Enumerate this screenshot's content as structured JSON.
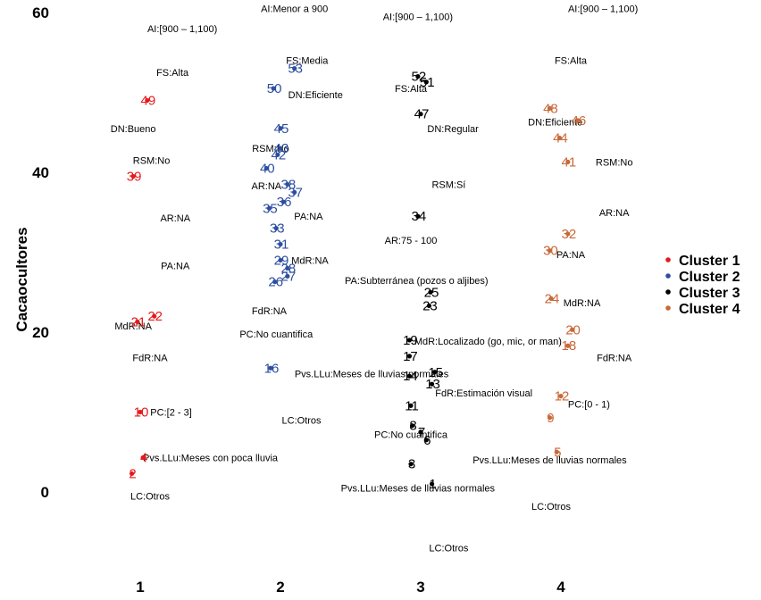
{
  "chart_data": {
    "type": "scatter",
    "title": "",
    "xlabel": "",
    "ylabel": "Cacaocultores",
    "x_ticks": [
      "1",
      "2",
      "3",
      "4"
    ],
    "y_ticks": [
      0,
      20,
      40,
      60
    ],
    "xlim": [
      0.1,
      5.4
    ],
    "ylim": [
      -11,
      61
    ],
    "grid": false,
    "legend": {
      "placement": "right",
      "entries": [
        {
          "name": "Cluster 1",
          "color": "#e41a1c"
        },
        {
          "name": "Cluster 2",
          "color": "#2e4fa0"
        },
        {
          "name": "Cluster 3",
          "color": "#000000"
        },
        {
          "name": "Cluster 4",
          "color": "#c8693a"
        }
      ]
    },
    "series": [
      {
        "name": "Cluster 1",
        "color": "#e41a1c",
        "points": [
          {
            "id": "49",
            "x": 1.05,
            "y": 49.0
          },
          {
            "id": "39",
            "x": 0.95,
            "y": 39.5
          },
          {
            "id": "22",
            "x": 1.1,
            "y": 22.0
          },
          {
            "id": "21",
            "x": 0.98,
            "y": 21.3
          },
          {
            "id": "10",
            "x": 1.0,
            "y": 10.0
          },
          {
            "id": "4",
            "x": 1.02,
            "y": 4.3
          },
          {
            "id": "2",
            "x": 0.94,
            "y": 2.3
          }
        ]
      },
      {
        "name": "Cluster 2",
        "color": "#2e4fa0",
        "points": [
          {
            "id": "53",
            "x": 2.1,
            "y": 53.0
          },
          {
            "id": "50",
            "x": 1.95,
            "y": 50.5
          },
          {
            "id": "45",
            "x": 2.0,
            "y": 45.5
          },
          {
            "id": "43",
            "x": 2.0,
            "y": 43.0
          },
          {
            "id": "42",
            "x": 1.98,
            "y": 42.2
          },
          {
            "id": "40",
            "x": 1.9,
            "y": 40.5
          },
          {
            "id": "38",
            "x": 2.05,
            "y": 38.5
          },
          {
            "id": "37",
            "x": 2.1,
            "y": 37.5
          },
          {
            "id": "36",
            "x": 2.02,
            "y": 36.3
          },
          {
            "id": "35",
            "x": 1.92,
            "y": 35.5
          },
          {
            "id": "33",
            "x": 1.97,
            "y": 33.0
          },
          {
            "id": "31",
            "x": 2.0,
            "y": 31.0
          },
          {
            "id": "29",
            "x": 2.0,
            "y": 29.0
          },
          {
            "id": "28",
            "x": 2.05,
            "y": 28.0
          },
          {
            "id": "27",
            "x": 2.05,
            "y": 27.0
          },
          {
            "id": "26",
            "x": 1.96,
            "y": 26.3
          },
          {
            "id": "16",
            "x": 1.93,
            "y": 15.5
          }
        ]
      },
      {
        "name": "Cluster 3",
        "color": "#000000",
        "points": [
          {
            "id": "52",
            "x": 2.98,
            "y": 52.0
          },
          {
            "id": "51",
            "x": 3.04,
            "y": 51.3
          },
          {
            "id": "47",
            "x": 3.0,
            "y": 47.3
          },
          {
            "id": "34",
            "x": 2.98,
            "y": 34.5
          },
          {
            "id": "25",
            "x": 3.07,
            "y": 25.0
          },
          {
            "id": "23",
            "x": 3.06,
            "y": 23.3
          },
          {
            "id": "19",
            "x": 2.92,
            "y": 19.0
          },
          {
            "id": "17",
            "x": 2.92,
            "y": 17.0
          },
          {
            "id": "15",
            "x": 3.1,
            "y": 15.0
          },
          {
            "id": "14",
            "x": 2.92,
            "y": 14.5
          },
          {
            "id": "13",
            "x": 3.08,
            "y": 13.5
          },
          {
            "id": "11",
            "x": 2.93,
            "y": 10.8
          },
          {
            "id": "8",
            "x": 2.94,
            "y": 8.3
          },
          {
            "id": "7",
            "x": 3.0,
            "y": 7.5
          },
          {
            "id": "6",
            "x": 3.04,
            "y": 6.5
          },
          {
            "id": "3",
            "x": 2.93,
            "y": 3.5
          },
          {
            "id": "1",
            "x": 3.08,
            "y": 1.0
          }
        ]
      },
      {
        "name": "Cluster 4",
        "color": "#c8693a",
        "points": [
          {
            "id": "48",
            "x": 3.92,
            "y": 48.0
          },
          {
            "id": "46",
            "x": 4.12,
            "y": 46.5
          },
          {
            "id": "44",
            "x": 3.99,
            "y": 44.3
          },
          {
            "id": "41",
            "x": 4.05,
            "y": 41.3
          },
          {
            "id": "32",
            "x": 4.05,
            "y": 32.3
          },
          {
            "id": "30",
            "x": 3.92,
            "y": 30.2
          },
          {
            "id": "24",
            "x": 3.93,
            "y": 24.2
          },
          {
            "id": "20",
            "x": 4.08,
            "y": 20.3
          },
          {
            "id": "18",
            "x": 4.05,
            "y": 18.3
          },
          {
            "id": "12",
            "x": 4.0,
            "y": 12.0
          },
          {
            "id": "9",
            "x": 3.92,
            "y": 9.3
          },
          {
            "id": "5",
            "x": 3.97,
            "y": 5.0
          }
        ]
      }
    ],
    "annotations": [
      {
        "text": "AI:[900 – 1,100)",
        "x": 1.3,
        "y": 58.0
      },
      {
        "text": "FS:Alta",
        "x": 1.23,
        "y": 52.5
      },
      {
        "text": "DN:Bueno",
        "x": 0.95,
        "y": 45.5
      },
      {
        "text": "RSM:No",
        "x": 1.08,
        "y": 41.5
      },
      {
        "text": "AR:NA",
        "x": 1.25,
        "y": 34.3
      },
      {
        "text": "PA:NA",
        "x": 1.25,
        "y": 28.3
      },
      {
        "text": "MdR:NA",
        "x": 0.95,
        "y": 20.8
      },
      {
        "text": "FdR:NA",
        "x": 1.07,
        "y": 16.8
      },
      {
        "text": "PC:[2 - 3]",
        "x": 1.22,
        "y": 10.0
      },
      {
        "text": "Pvs.LLu:Meses con poca lluvia",
        "x": 1.5,
        "y": 4.3
      },
      {
        "text": "LC:Otros",
        "x": 1.07,
        "y": -0.5
      },
      {
        "text": "AI:Menor a 900",
        "x": 2.1,
        "y": 60.5
      },
      {
        "text": "FS:Media",
        "x": 2.19,
        "y": 54.0
      },
      {
        "text": "DN:Eficiente",
        "x": 2.25,
        "y": 49.7
      },
      {
        "text": "RSM:No",
        "x": 1.93,
        "y": 43.0
      },
      {
        "text": "AR:NA",
        "x": 1.9,
        "y": 38.3
      },
      {
        "text": "PA:NA",
        "x": 2.2,
        "y": 34.5
      },
      {
        "text": "MdR:NA",
        "x": 2.21,
        "y": 29.0
      },
      {
        "text": "FdR:NA",
        "x": 1.92,
        "y": 22.7
      },
      {
        "text": "PC:No cuantifica",
        "x": 1.97,
        "y": 19.8
      },
      {
        "text": "Pvs.LLu:Meses de lluvias normales",
        "x": 2.65,
        "y": 14.8
      },
      {
        "text": "LC:Otros",
        "x": 2.15,
        "y": 9.0
      },
      {
        "text": "AI:[900 – 1,100)",
        "x": 2.98,
        "y": 59.5
      },
      {
        "text": "FS:Alta",
        "x": 2.93,
        "y": 50.5
      },
      {
        "text": "DN:Regular",
        "x": 3.23,
        "y": 45.5
      },
      {
        "text": "RSM:Sí",
        "x": 3.2,
        "y": 38.5
      },
      {
        "text": "AR:75 - 100",
        "x": 2.93,
        "y": 31.5
      },
      {
        "text": "PA:Subterránea (pozos o aljibes)",
        "x": 2.97,
        "y": 26.5
      },
      {
        "text": "MdR:Localizado (go, mic, or man)",
        "x": 3.48,
        "y": 18.9
      },
      {
        "text": "FdR:Estimación visual",
        "x": 3.45,
        "y": 12.4
      },
      {
        "text": "PC:No cuantifica",
        "x": 2.93,
        "y": 7.2
      },
      {
        "text": "Pvs.LLu:Meses de lluvias normales",
        "x": 2.98,
        "y": 0.5
      },
      {
        "text": "LC:Otros",
        "x": 3.2,
        "y": -7.0
      },
      {
        "text": "AI:[900 – 1,100)",
        "x": 4.3,
        "y": 60.5
      },
      {
        "text": "FS:Alta",
        "x": 4.07,
        "y": 54.0
      },
      {
        "text": "DN:Eficiente",
        "x": 3.96,
        "y": 46.3
      },
      {
        "text": "RSM:No",
        "x": 4.38,
        "y": 41.3
      },
      {
        "text": "AR:NA",
        "x": 4.38,
        "y": 35.0
      },
      {
        "text": "PA:NA",
        "x": 4.07,
        "y": 29.7
      },
      {
        "text": "MdR:NA",
        "x": 4.15,
        "y": 23.7
      },
      {
        "text": "FdR:NA",
        "x": 4.38,
        "y": 16.8
      },
      {
        "text": "PC:[0 - 1)",
        "x": 4.2,
        "y": 11.0
      },
      {
        "text": "Pvs.LLu:Meses de lluvias normales",
        "x": 3.92,
        "y": 4.0
      },
      {
        "text": "LC:Otros",
        "x": 3.93,
        "y": -1.8
      }
    ]
  }
}
